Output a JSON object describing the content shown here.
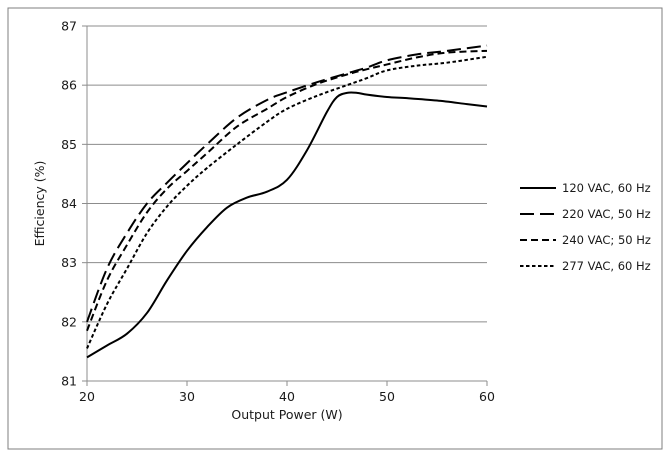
{
  "chart_data": {
    "type": "line",
    "title": "",
    "xlabel": "Output Power (W)",
    "ylabel": "Efficiency (%)",
    "xlim": [
      20,
      60
    ],
    "ylim": [
      81,
      87
    ],
    "xticks": [
      20,
      30,
      40,
      50,
      60
    ],
    "yticks": [
      81,
      82,
      83,
      84,
      85,
      86,
      87
    ],
    "grid": "horizontal",
    "legend_position": "right",
    "series": [
      {
        "name": "120 VAC, 60 Hz",
        "style": "solid",
        "color": "#000000",
        "x": [
          20,
          22,
          24,
          26,
          28,
          30,
          32,
          34,
          36,
          38,
          40,
          42,
          44,
          45,
          46,
          47,
          48,
          50,
          52,
          55,
          58,
          60
        ],
        "y": [
          81.4,
          81.6,
          81.8,
          82.15,
          82.7,
          83.2,
          83.6,
          83.93,
          84.1,
          84.2,
          84.4,
          84.9,
          85.55,
          85.8,
          85.87,
          85.87,
          85.84,
          85.8,
          85.78,
          85.74,
          85.68,
          85.64
        ]
      },
      {
        "name": "220 VAC, 50 Hz",
        "style": "long-dash",
        "color": "#000000",
        "x": [
          20,
          22,
          24,
          26,
          28,
          30,
          32,
          35,
          38,
          40,
          43,
          46,
          48,
          50,
          53,
          56,
          60
        ],
        "y": [
          82.0,
          82.9,
          83.5,
          84.0,
          84.35,
          84.68,
          85.0,
          85.45,
          85.75,
          85.88,
          86.05,
          86.2,
          86.3,
          86.42,
          86.52,
          86.58,
          86.67
        ]
      },
      {
        "name": "240 VAC; 50 Hz",
        "style": "dash",
        "color": "#000000",
        "x": [
          20,
          22,
          24,
          26,
          28,
          30,
          32,
          35,
          38,
          40,
          43,
          46,
          48,
          50,
          53,
          56,
          60
        ],
        "y": [
          81.85,
          82.7,
          83.3,
          83.85,
          84.25,
          84.55,
          84.85,
          85.3,
          85.6,
          85.8,
          86.02,
          86.18,
          86.27,
          86.35,
          86.47,
          86.55,
          86.58
        ]
      },
      {
        "name": "277 VAC, 60 Hz",
        "style": "dot",
        "color": "#000000",
        "x": [
          20,
          22,
          24,
          26,
          28,
          30,
          32,
          35,
          38,
          40,
          43,
          46,
          48,
          50,
          53,
          56,
          60
        ],
        "y": [
          81.55,
          82.3,
          82.9,
          83.5,
          83.95,
          84.3,
          84.6,
          85.0,
          85.38,
          85.6,
          85.82,
          86.0,
          86.12,
          86.25,
          86.33,
          86.38,
          86.48
        ]
      }
    ]
  }
}
